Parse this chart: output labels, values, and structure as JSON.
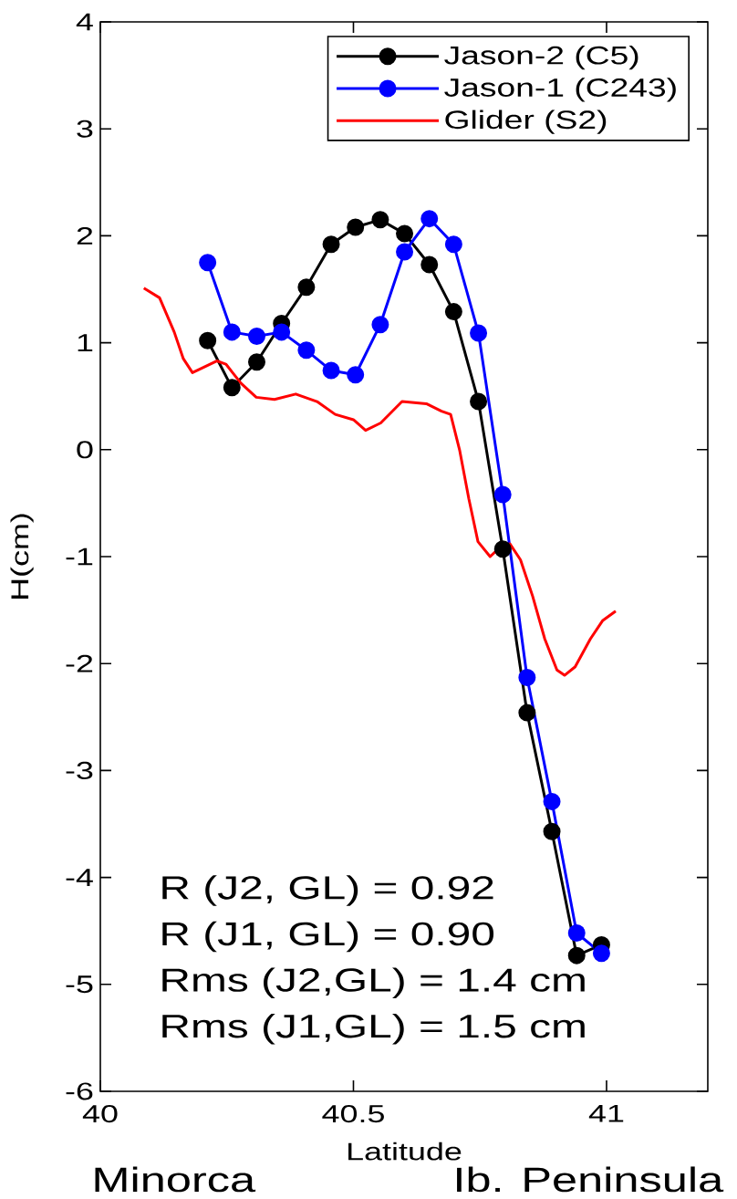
{
  "chart_data": {
    "type": "line",
    "xlabel": "Latitude",
    "ylabel": "H(cm)",
    "x": [
      40.212,
      40.26,
      40.309,
      40.358,
      40.407,
      40.456,
      40.504,
      40.553,
      40.601,
      40.65,
      40.698,
      40.747,
      40.795,
      40.843,
      40.892,
      40.941,
      40.99
    ],
    "xlim": [
      40,
      41.2
    ],
    "xticks": [
      40,
      40.5,
      41
    ],
    "ylim": [
      -6,
      4
    ],
    "yticks": [
      -6,
      -5,
      -4,
      -3,
      -2,
      -1,
      0,
      1,
      2,
      3,
      4
    ],
    "series": [
      {
        "name": "Jason-2 (C5)",
        "color": "#000000",
        "marker": "circle",
        "values": [
          1.02,
          0.58,
          0.82,
          1.18,
          1.52,
          1.92,
          2.08,
          2.15,
          2.02,
          1.73,
          1.29,
          0.45,
          -0.93,
          -2.46,
          -3.57,
          -4.73,
          -4.63
        ]
      },
      {
        "name": "Jason-1 (C243)",
        "color": "#0000ff",
        "marker": "circle",
        "values": [
          1.75,
          1.1,
          1.06,
          1.1,
          0.93,
          0.74,
          0.7,
          1.17,
          1.85,
          2.16,
          1.92,
          1.09,
          -0.42,
          -2.13,
          -3.29,
          -4.52,
          -4.71
        ]
      },
      {
        "name": "Glider (S2)",
        "color": "#ff0000",
        "x": [
          40.086,
          40.117,
          40.146,
          40.164,
          40.182,
          40.2,
          40.23,
          40.248,
          40.278,
          40.308,
          40.344,
          40.386,
          40.428,
          40.464,
          40.5,
          40.524,
          40.554,
          40.596,
          40.644,
          40.674,
          40.692,
          40.71,
          40.728,
          40.746,
          40.77,
          40.788,
          40.809,
          40.83,
          40.854,
          40.878,
          40.902,
          40.917,
          40.938,
          40.968,
          40.992,
          41.018
        ],
        "values": [
          1.51,
          1.42,
          1.1,
          0.85,
          0.72,
          0.76,
          0.83,
          0.8,
          0.62,
          0.49,
          0.47,
          0.52,
          0.45,
          0.33,
          0.28,
          0.18,
          0.25,
          0.45,
          0.43,
          0.36,
          0.33,
          -0.01,
          -0.46,
          -0.86,
          -1.0,
          -0.92,
          -0.88,
          -1.03,
          -1.37,
          -1.77,
          -2.06,
          -2.11,
          -2.03,
          -1.77,
          -1.6,
          -1.51
        ]
      }
    ],
    "legend": "top right",
    "annotations": [
      "R (J2, GL) = 0.92",
      "R (J1, GL) = 0.90",
      "Rms (J2,GL) = 1.4 cm",
      "Rms (J1,GL) = 1.5 cm",
      "Minorca",
      "Ib. Peninsula"
    ]
  }
}
